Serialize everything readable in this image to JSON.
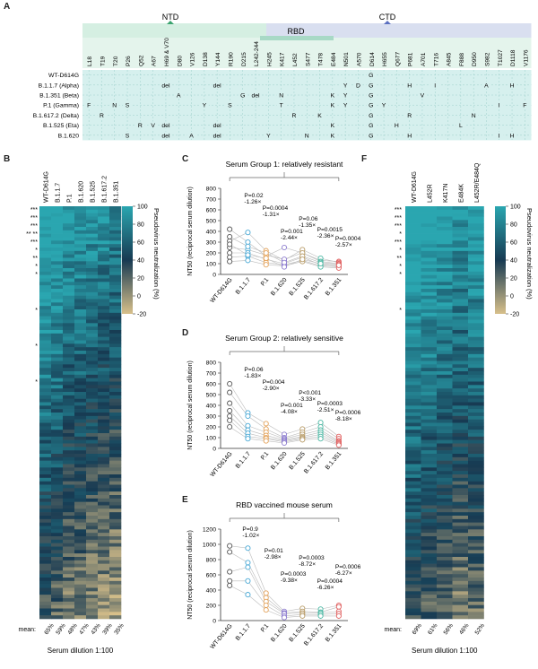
{
  "panels": {
    "A": {
      "label": "A",
      "domains": {
        "ntd": "NTD",
        "rbd": "RBD",
        "ctd": "CTD"
      },
      "positions": [
        "L18",
        "T19",
        "T20",
        "P26",
        "Q52",
        "A67",
        "H69 & V70",
        "D80",
        "V126",
        "D138",
        "Y144",
        "R190",
        "D215",
        "L242-244",
        "H245",
        "K417",
        "L452",
        "S477",
        "T478",
        "E484",
        "N501",
        "A570",
        "D614",
        "H655",
        "Q677",
        "P681",
        "A701",
        "T716",
        "A845",
        "F888",
        "D950",
        "S982",
        "T1027",
        "D1118",
        "V1176"
      ],
      "variants": [
        {
          "name": "WT-D614G",
          "cells": {
            "D614": "G"
          }
        },
        {
          "name": "B.1.1.7 (Alpha)",
          "cells": {
            "H69 & V70": "del",
            "Y144": "del",
            "N501": "Y",
            "A570": "D",
            "D614": "G",
            "P681": "H",
            "T716": "I",
            "S982": "A",
            "D1118": "H"
          }
        },
        {
          "name": "B.1.351 (Beta)",
          "cells": {
            "D80": "A",
            "D215": "G",
            "L242-244": "del",
            "K417": "N",
            "E484": "K",
            "N501": "Y",
            "D614": "G",
            "A701": "V"
          }
        },
        {
          "name": "P.1 (Gamma)",
          "cells": {
            "L18": "F",
            "T20": "N",
            "P26": "S",
            "D138": "Y",
            "R190": "S",
            "K417": "T",
            "E484": "K",
            "N501": "Y",
            "D614": "G",
            "H655": "Y",
            "T1027": "I",
            "V1176": "F"
          }
        },
        {
          "name": "B.1.617.2 (Delta)",
          "cells": {
            "T19": "R",
            "L452": "R",
            "T478": "K",
            "D614": "G",
            "P681": "R",
            "D950": "N"
          }
        },
        {
          "name": "B.1.525 (Eta)",
          "cells": {
            "Q52": "R",
            "A67": "V",
            "H69 & V70": "del",
            "Y144": "del",
            "E484": "K",
            "D614": "G",
            "Q677": "H",
            "F888": "L"
          }
        },
        {
          "name": "B.1.620",
          "cells": {
            "P26": "S",
            "H69 & V70": "del",
            "V126": "A",
            "Y144": "del",
            "H245": "Y",
            "S477": "N",
            "E484": "K",
            "D614": "G",
            "P681": "H",
            "T1027": "I",
            "D1118": "H"
          }
        }
      ]
    },
    "B": {
      "label": "B",
      "columns": [
        "WT-D614G",
        "B.1.1.7",
        "P.1",
        "B.1.620",
        "B.1.525",
        "B.1.617.2",
        "B.1.351"
      ],
      "means": [
        "65%",
        "59%",
        "48%",
        "47%",
        "43%",
        "39%",
        "35%"
      ],
      "mean_label": "mean:",
      "xlabel": "Serum dilution 1:100",
      "colorbar_title": "Pseudovirus neutralization (%)",
      "colorbar_ticks": [
        "100",
        "80",
        "60",
        "40",
        "20",
        "0",
        "-20"
      ],
      "stars": [
        "***",
        "***",
        "***",
        "** **",
        "***",
        "*",
        "**",
        "*",
        "*",
        "*",
        "*",
        "*"
      ],
      "colors": {
        "high": "#2aa6b0",
        "mid": "#173a52",
        "low": "#d8c08a"
      }
    },
    "C": {
      "label": "C",
      "title": "Serum Group 1: relatively resistant",
      "ylabel": "NT50 (reciprocal serum dilution)",
      "yticks": [
        "0",
        "100",
        "200",
        "300",
        "400",
        "500",
        "600",
        "700",
        "800"
      ],
      "xcats": [
        "WT-D614G",
        "B.1.1.7",
        "P.1",
        "B.1.620",
        "B.1.525",
        "B.1.617.2",
        "B.1.351"
      ],
      "annotations": [
        {
          "p": "P=0.02",
          "fold": "-1.26×"
        },
        {
          "p": "P=0.0004",
          "fold": "-1.31×"
        },
        {
          "p": "P=0.001",
          "fold": "-2.44×"
        },
        {
          "p": "P=0.06",
          "fold": "-1.35×"
        },
        {
          "p": "P=0.0015",
          "fold": "-2.36×"
        },
        {
          "p": "P=0.0004",
          "fold": "-2.57×"
        }
      ]
    },
    "D": {
      "label": "D",
      "title": "Serum Group 2: relatively sensitive",
      "ylabel": "NT50 (reciprocal serum dilution)",
      "yticks": [
        "0",
        "100",
        "200",
        "300",
        "400",
        "500",
        "600",
        "700",
        "800"
      ],
      "xcats": [
        "WT-D614G",
        "B.1.1.7",
        "P.1",
        "B.1.620",
        "B.1.525",
        "B.1.617.2",
        "B.1.351"
      ],
      "annotations": [
        {
          "p": "P=0.06",
          "fold": "-1.83×"
        },
        {
          "p": "P=0.004",
          "fold": "-2.90×"
        },
        {
          "p": "P=0.001",
          "fold": "-4.08×"
        },
        {
          "p": "P<0.001",
          "fold": "-3.33×"
        },
        {
          "p": "P=0.0003",
          "fold": "-2.51×"
        },
        {
          "p": "P=0.0006",
          "fold": "-8.18×"
        }
      ]
    },
    "E": {
      "label": "E",
      "title": "RBD vaccined mouse serum",
      "ylabel": "NT50 (reciprocal serum dilution)",
      "yticks": [
        "0",
        "200",
        "400",
        "600",
        "800",
        "1000",
        "1200"
      ],
      "xcats": [
        "WT-D614G",
        "B.1.1.7",
        "P.1",
        "B.1.620",
        "B.1.525",
        "B.1.617.2",
        "B.1.351"
      ],
      "annotations": [
        {
          "p": "P=0.9",
          "fold": "-1.02×"
        },
        {
          "p": "P=0.01",
          "fold": "-2.98×"
        },
        {
          "p": "P=0.0003",
          "fold": "-9.38×"
        },
        {
          "p": "P=0.0003",
          "fold": "-8.72×"
        },
        {
          "p": "P=0.0004",
          "fold": "-6.26×"
        },
        {
          "p": "P=0.0006",
          "fold": "-6.27×"
        }
      ]
    },
    "F": {
      "label": "F",
      "columns": [
        "WT-D614G",
        "L452R",
        "K417N",
        "E484K",
        "L452R/E484Q"
      ],
      "means": [
        "69%",
        "61%",
        "56%",
        "46%",
        "52%"
      ],
      "mean_label": "mean:",
      "xlabel": "Serum dilution 1:100",
      "colorbar_title": "Pseudovirus neutralization (%)",
      "colorbar_ticks": [
        "100",
        "80",
        "60",
        "40",
        "20",
        "0",
        "-20"
      ],
      "stars": [
        "***",
        "***",
        "***",
        "*",
        "***",
        "*",
        "**",
        "*",
        "*",
        "*"
      ]
    }
  },
  "chart_data": [
    {
      "type": "heatmap",
      "title": "",
      "columns": [
        "WT-D614G",
        "B.1.1.7",
        "P.1",
        "B.1.620",
        "B.1.525",
        "B.1.617.2",
        "B.1.351"
      ],
      "column_means_percent": [
        65,
        59,
        48,
        47,
        43,
        39,
        35
      ],
      "value_range": [
        -20,
        100
      ]
    },
    {
      "type": "scatter",
      "title": "Serum Group 1: relatively resistant",
      "categories": [
        "WT-D614G",
        "B.1.1.7",
        "P.1",
        "B.1.620",
        "B.1.525",
        "B.1.617.2",
        "B.1.351"
      ],
      "ylim": [
        0,
        800
      ],
      "series": [
        {
          "values": [
            420,
            300,
            170,
            250,
            200,
            130,
            120
          ]
        },
        {
          "values": [
            310,
            390,
            220,
            130,
            230,
            150,
            110
          ]
        },
        {
          "values": [
            250,
            230,
            180,
            140,
            200,
            120,
            100
          ]
        },
        {
          "values": [
            200,
            200,
            140,
            100,
            160,
            90,
            80
          ]
        },
        {
          "values": [
            160,
            170,
            110,
            90,
            130,
            80,
            70
          ]
        },
        {
          "values": [
            120,
            130,
            90,
            80,
            120,
            70,
            60
          ]
        },
        {
          "values": [
            350,
            260,
            200,
            110,
            170,
            110,
            95
          ]
        },
        {
          "values": [
            280,
            180,
            150,
            70,
            140,
            100,
            85
          ]
        }
      ]
    },
    {
      "type": "scatter",
      "title": "Serum Group 2: relatively sensitive",
      "categories": [
        "WT-D614G",
        "B.1.1.7",
        "P.1",
        "B.1.620",
        "B.1.525",
        "B.1.617.2",
        "B.1.351"
      ],
      "ylim": [
        0,
        800
      ],
      "series": [
        {
          "values": [
            600,
            330,
            230,
            130,
            180,
            240,
            110
          ]
        },
        {
          "values": [
            520,
            300,
            180,
            100,
            150,
            200,
            90
          ]
        },
        {
          "values": [
            420,
            210,
            150,
            90,
            130,
            170,
            70
          ]
        },
        {
          "values": [
            350,
            170,
            120,
            80,
            110,
            150,
            60
          ]
        },
        {
          "values": [
            300,
            140,
            100,
            70,
            100,
            130,
            50
          ]
        },
        {
          "values": [
            260,
            110,
            90,
            60,
            90,
            110,
            40
          ]
        },
        {
          "values": [
            200,
            90,
            70,
            50,
            80,
            90,
            30
          ]
        }
      ]
    },
    {
      "type": "scatter",
      "title": "RBD vaccined mouse serum",
      "categories": [
        "WT-D614G",
        "B.1.1.7",
        "P.1",
        "B.1.620",
        "B.1.525",
        "B.1.617.2",
        "B.1.351"
      ],
      "ylim": [
        0,
        1200
      ],
      "series": [
        {
          "values": [
            980,
            950,
            360,
            120,
            160,
            150,
            200
          ]
        },
        {
          "values": [
            900,
            760,
            300,
            100,
            120,
            110,
            180
          ]
        },
        {
          "values": [
            640,
            700,
            250,
            90,
            100,
            100,
            120
          ]
        },
        {
          "values": [
            520,
            520,
            200,
            60,
            80,
            80,
            90
          ]
        },
        {
          "values": [
            460,
            340,
            140,
            40,
            60,
            60,
            60
          ]
        }
      ]
    },
    {
      "type": "heatmap",
      "title": "",
      "columns": [
        "WT-D614G",
        "L452R",
        "K417N",
        "E484K",
        "L452R/E484Q"
      ],
      "column_means_percent": [
        69,
        61,
        56,
        46,
        52
      ],
      "value_range": [
        -20,
        100
      ]
    }
  ]
}
